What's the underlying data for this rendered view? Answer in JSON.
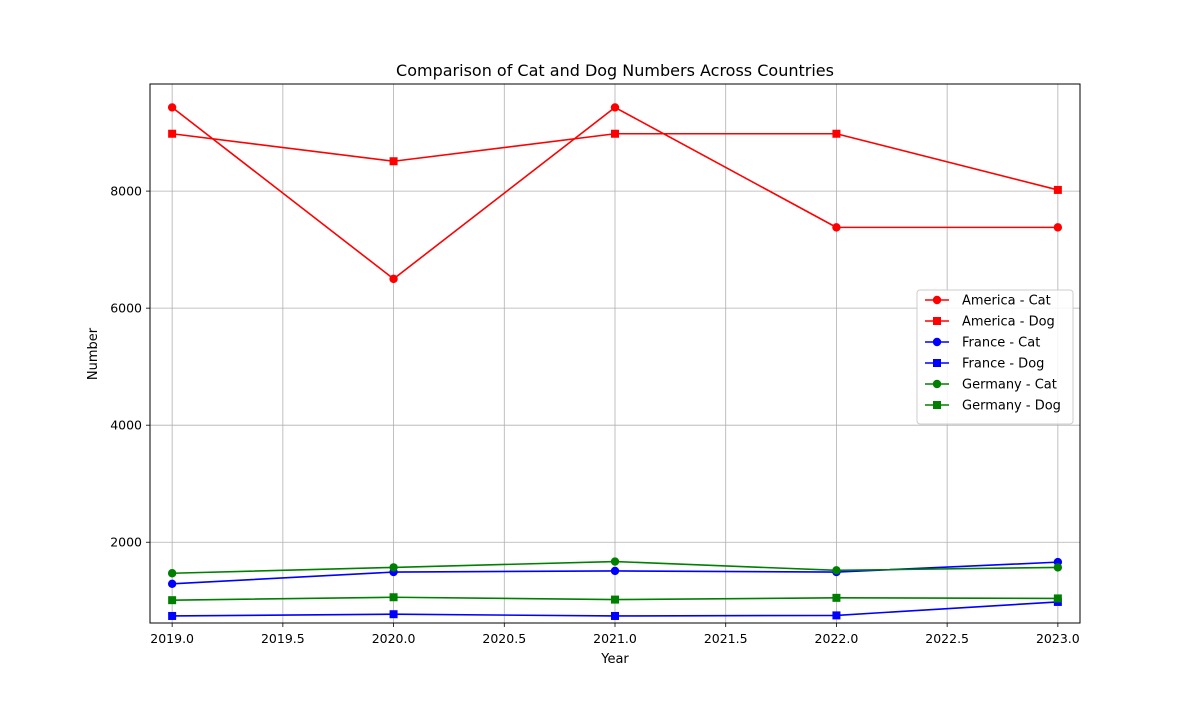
{
  "chart_data": {
    "type": "line",
    "title": "Comparison of Cat and Dog Numbers Across Countries",
    "xlabel": "Year",
    "ylabel": "Number",
    "xlim": [
      2018.9,
      2023.1
    ],
    "ylim": [
      620,
      9830
    ],
    "xticks": [
      2019.0,
      2019.5,
      2020.0,
      2020.5,
      2021.0,
      2021.5,
      2022.0,
      2022.5,
      2023.0
    ],
    "xtick_labels": [
      "2019.0",
      "2019.5",
      "2020.0",
      "2020.5",
      "2021.0",
      "2021.5",
      "2022.0",
      "2022.5",
      "2023.0"
    ],
    "yticks": [
      2000,
      4000,
      6000,
      8000
    ],
    "ytick_labels": [
      "2000",
      "4000",
      "6000",
      "8000"
    ],
    "grid": true,
    "legend_position": "center-right",
    "x": [
      2019,
      2020,
      2021,
      2022,
      2023
    ],
    "series": [
      {
        "name": "America - Cat",
        "color": "#ff0000",
        "marker": "circle",
        "values": [
          9430,
          6500,
          9430,
          7380,
          7380
        ]
      },
      {
        "name": "America - Dog",
        "color": "#ff0000",
        "marker": "square",
        "values": [
          8980,
          8510,
          8980,
          8980,
          8020
        ]
      },
      {
        "name": "France - Cat",
        "color": "#0000ff",
        "marker": "circle",
        "values": [
          1290,
          1490,
          1510,
          1490,
          1660
        ]
      },
      {
        "name": "France - Dog",
        "color": "#0000ff",
        "marker": "square",
        "values": [
          740,
          770,
          740,
          750,
          980
        ]
      },
      {
        "name": "Germany - Cat",
        "color": "#008000",
        "marker": "circle",
        "values": [
          1470,
          1570,
          1670,
          1520,
          1570
        ]
      },
      {
        "name": "Germany - Dog",
        "color": "#008000",
        "marker": "square",
        "values": [
          1010,
          1060,
          1020,
          1050,
          1040
        ]
      }
    ]
  }
}
